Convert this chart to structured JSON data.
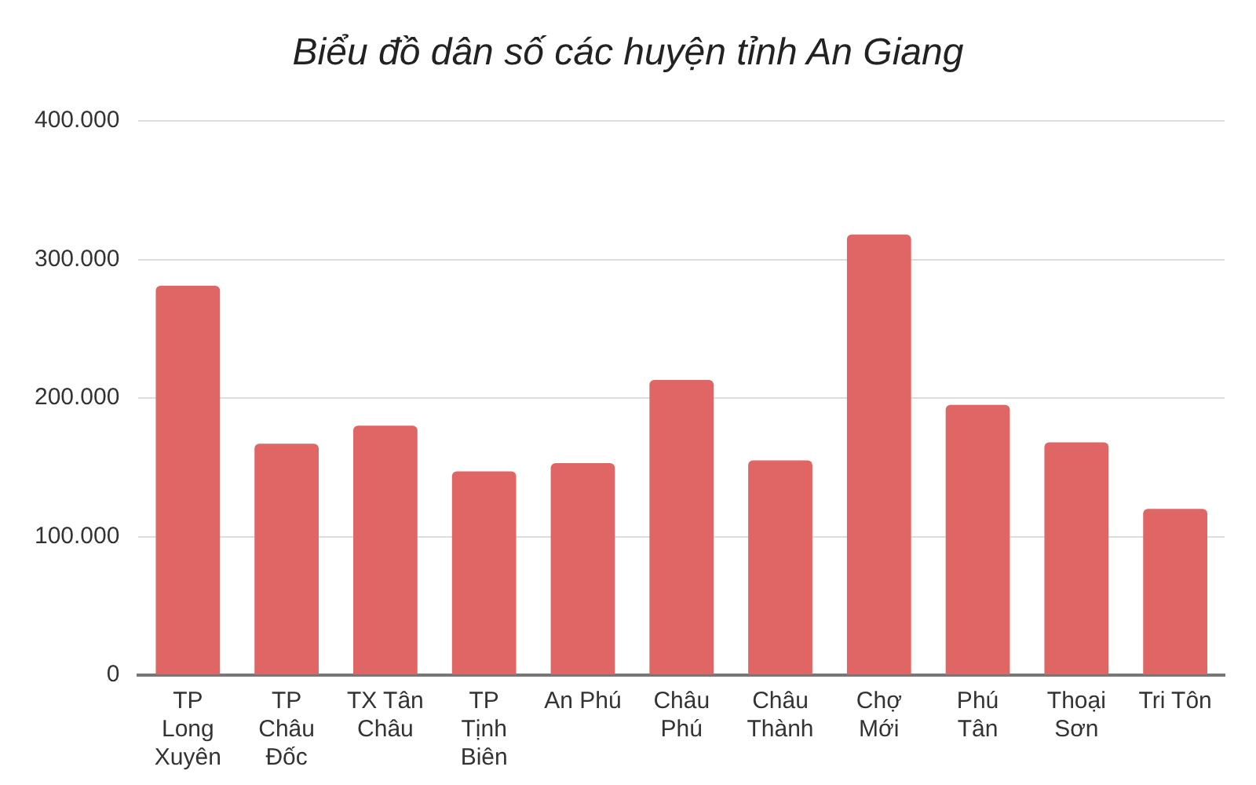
{
  "chart_data": {
    "type": "bar",
    "title": "Biểu đồ dân số các huyện tỉnh An Giang",
    "categories": [
      "TP Long Xuyên",
      "TP Châu Đốc",
      "TX Tân Châu",
      "TP Tịnh Biên",
      "An Phú",
      "Châu Phú",
      "Châu Thành",
      "Chợ Mới",
      "Phú Tân",
      "Thoại Sơn",
      "Tri Tôn"
    ],
    "values": [
      281000,
      167000,
      180000,
      147000,
      153000,
      213000,
      155000,
      318000,
      195000,
      168000,
      120000
    ],
    "color": "#e06666",
    "ylim": [
      0,
      400000
    ],
    "yticks": [
      0,
      {
        "value": 100000,
        "label": "100.000"
      },
      {
        "value": 200000,
        "label": "200.000"
      },
      {
        "value": 300000,
        "label": "300.000"
      },
      {
        "value": 400000,
        "label": "400.000"
      }
    ],
    "grid": "y",
    "legend": false
  }
}
